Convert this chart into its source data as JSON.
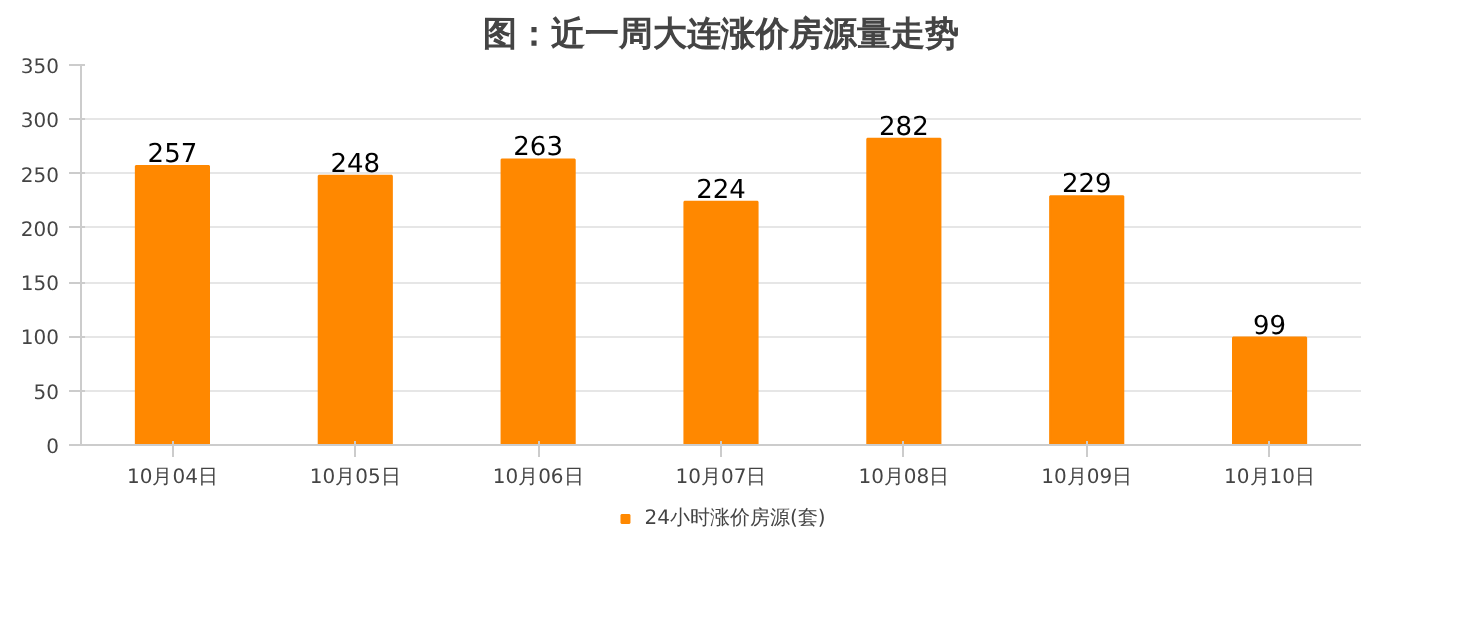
{
  "chart_data": {
    "type": "bar",
    "title": "图：近一周大连涨价房源量走势",
    "categories": [
      "10月04日",
      "10月05日",
      "10月06日",
      "10月07日",
      "10月08日",
      "10月09日",
      "10月10日"
    ],
    "series": [
      {
        "name": "24小时涨价房源(套)",
        "color": "#ff8800",
        "values": [
          257,
          248,
          263,
          224,
          282,
          229,
          99
        ]
      }
    ],
    "ylim": [
      0,
      350
    ],
    "yticks": [
      0,
      50,
      100,
      150,
      200,
      250,
      300,
      350
    ],
    "grid": "y",
    "legend": "bottom",
    "data_labels": true
  }
}
